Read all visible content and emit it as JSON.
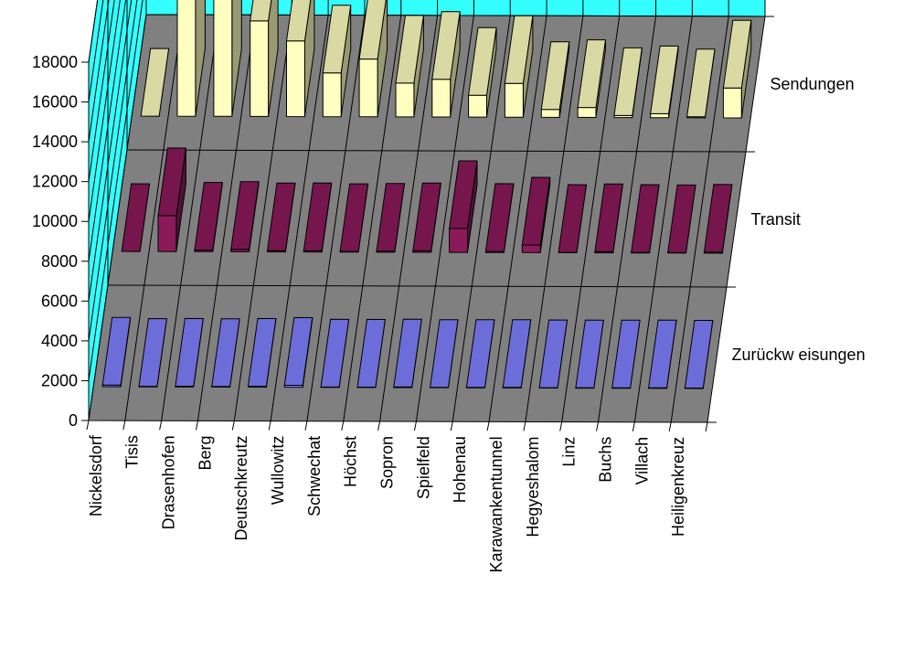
{
  "chart_data": {
    "type": "bar",
    "subtype": "3d-column",
    "title": "",
    "xlabel": "",
    "ylabel": "",
    "ylim": [
      0,
      18000
    ],
    "yticks": [
      0,
      2000,
      4000,
      6000,
      8000,
      10000,
      12000,
      14000,
      16000,
      18000
    ],
    "ytick_labels": [
      "0",
      "2000",
      "4000",
      "6000",
      "8000",
      "10000",
      "12000",
      "14000",
      "16000",
      "18000"
    ],
    "grid": true,
    "categories": [
      "Nickelsdorf",
      "Tisis",
      "Drasenhofen",
      "Berg",
      "Deutschkreutz",
      "Wullowitz",
      "Schwechat",
      "Höchst",
      "Sopron",
      "Spielfeld",
      "Hohenau",
      "Karawankentunnel",
      "Hegyeshalom",
      "Linz",
      "Buchs",
      "Villach",
      "Heiligenkreuz"
    ],
    "series": [
      {
        "name": "Sendungen",
        "color": "#FFFFC0",
        "values": [
          0,
          18000,
          6200,
          4800,
          3800,
          2200,
          2900,
          1700,
          1900,
          1100,
          1700,
          400,
          500,
          100,
          200,
          50,
          1500
        ]
      },
      {
        "name": "Transit",
        "color": "#8B1A5A",
        "values": [
          0,
          1800,
          80,
          120,
          60,
          70,
          30,
          50,
          80,
          1200,
          60,
          380,
          20,
          60,
          30,
          20,
          50
        ]
      },
      {
        "name": "Zurückw eisungen",
        "color": "#8080FF",
        "values": [
          80,
          30,
          40,
          30,
          50,
          100,
          20,
          20,
          40,
          20,
          20,
          30,
          20,
          20,
          20,
          30,
          20
        ]
      }
    ],
    "series_labels": [
      "Sendungen",
      "Transit",
      "Zurückw eisungen"
    ],
    "colors": {
      "wall": "#33FFFF",
      "floor": "#808080",
      "grid": "#000000"
    }
  }
}
